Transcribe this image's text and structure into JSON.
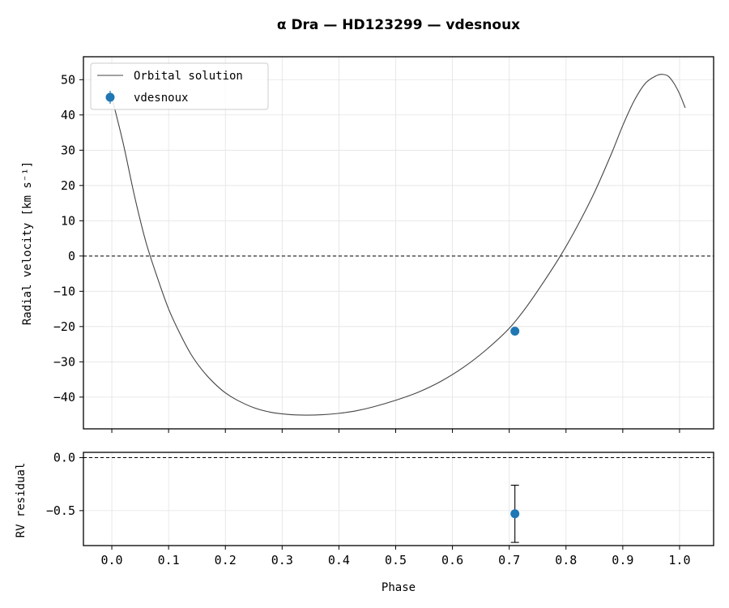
{
  "chart_data": [
    {
      "type": "line",
      "title": "α  Dra  —  HD123299  —  vdesnoux",
      "xlabel": "",
      "ylabel": "Radial velocity [km s⁻¹]",
      "xlim": [
        -0.05,
        1.06
      ],
      "ylim": [
        -49,
        56.5
      ],
      "xticks": [
        0.0,
        0.1,
        0.2,
        0.3,
        0.4,
        0.5,
        0.6,
        0.7,
        0.8,
        0.9,
        1.0
      ],
      "yticks": [
        -40,
        -30,
        -20,
        -10,
        0,
        10,
        20,
        30,
        40,
        50
      ],
      "ytick_labels": [
        "−40",
        "−30",
        "−20",
        "−10",
        "0",
        "10",
        "20",
        "30",
        "40",
        "50"
      ],
      "grid": true,
      "reference_line_y": 0,
      "legend": {
        "placement": "top-left",
        "entries": [
          "Orbital solution",
          "vdesnoux"
        ]
      },
      "series": [
        {
          "name": "Orbital solution",
          "style": "line",
          "color": "#444444",
          "x": [
            0.0,
            0.02,
            0.04,
            0.06,
            0.08,
            0.1,
            0.12,
            0.14,
            0.16,
            0.18,
            0.2,
            0.22,
            0.25,
            0.28,
            0.31,
            0.34,
            0.37,
            0.4,
            0.43,
            0.46,
            0.5,
            0.54,
            0.58,
            0.62,
            0.66,
            0.7,
            0.73,
            0.76,
            0.79,
            0.82,
            0.85,
            0.88,
            0.9,
            0.92,
            0.94,
            0.96,
            0.97,
            0.98,
            0.99,
            1.0,
            1.01
          ],
          "y": [
            45,
            32,
            17,
            4,
            -6,
            -15,
            -22,
            -28,
            -32.5,
            -36,
            -38.8,
            -40.8,
            -43,
            -44.3,
            -44.9,
            -45.1,
            -45,
            -44.6,
            -43.9,
            -42.8,
            -40.9,
            -38.6,
            -35.5,
            -31.5,
            -26.5,
            -20.5,
            -14.5,
            -7.5,
            0,
            8.5,
            18,
            29,
            37,
            44,
            49,
            51.2,
            51.5,
            51,
            49,
            46,
            42
          ]
        },
        {
          "name": "vdesnoux",
          "style": "points",
          "color": "#1f77b4",
          "x": [
            0.71
          ],
          "y": [
            -21.3
          ],
          "yerr": [
            0.28
          ]
        }
      ]
    },
    {
      "type": "scatter",
      "xlabel": "Phase",
      "ylabel": "RV residual",
      "xlim": [
        -0.05,
        1.06
      ],
      "ylim": [
        -0.83,
        0.05
      ],
      "xticks": [
        0.0,
        0.1,
        0.2,
        0.3,
        0.4,
        0.5,
        0.6,
        0.7,
        0.8,
        0.9,
        1.0
      ],
      "xtick_labels": [
        "0.0",
        "0.1",
        "0.2",
        "0.3",
        "0.4",
        "0.5",
        "0.6",
        "0.7",
        "0.8",
        "0.9",
        "1.0"
      ],
      "yticks": [
        0.0,
        -0.5
      ],
      "ytick_labels": [
        "0.0",
        "−0.5"
      ],
      "grid": true,
      "reference_line_y": 0,
      "series": [
        {
          "name": "vdesnoux",
          "style": "points",
          "color": "#1f77b4",
          "x": [
            0.71
          ],
          "y": [
            -0.53
          ],
          "yerr": [
            0.27
          ]
        }
      ]
    }
  ]
}
